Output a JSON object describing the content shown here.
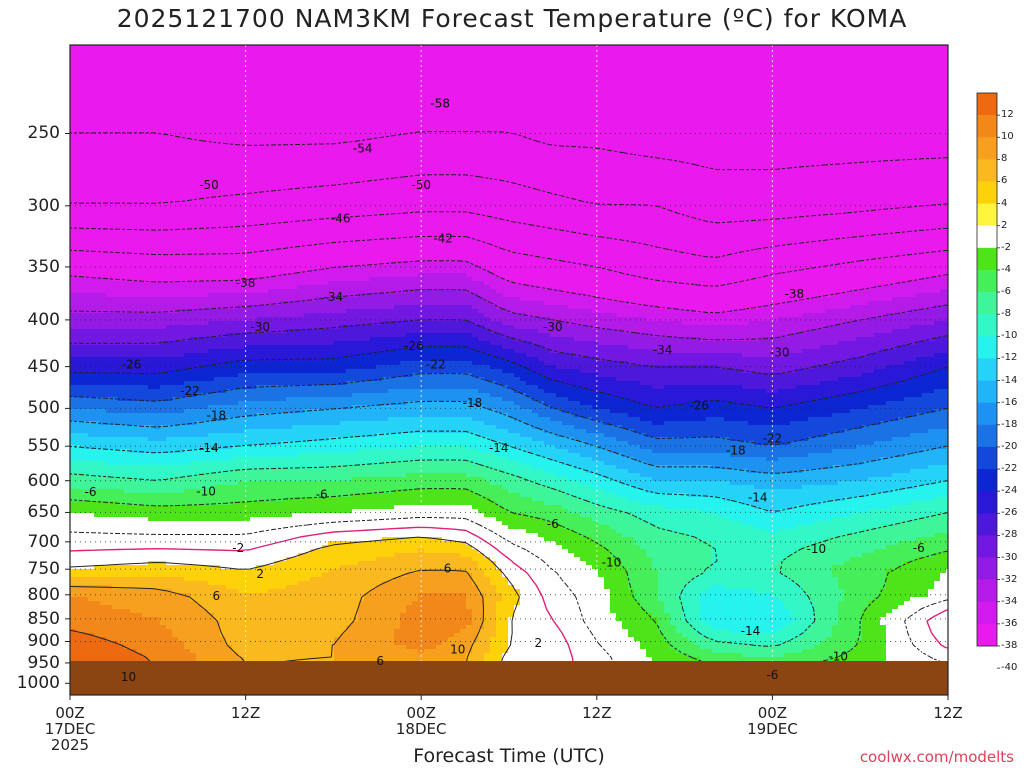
{
  "title": "2025121700 NAM3KM Forecast Temperature (ºC) for KOMA",
  "x_axis_title": "Forecast Time (UTC)",
  "credit": "coolwx.com/modelts",
  "colors": {
    "ground": "#8b4513",
    "freezing_line": "#e0207a",
    "contour": "#222222"
  },
  "chart_data": {
    "type": "heatmap",
    "title": "2025121700 NAM3KM Forecast Temperature (ºC) for KOMA",
    "xlabel": "Forecast Time (UTC)",
    "ylabel": "",
    "x_ticks": [
      {
        "hour": 0,
        "lines": [
          "00Z",
          "17DEC",
          "2025"
        ]
      },
      {
        "hour": 12,
        "lines": [
          "12Z"
        ]
      },
      {
        "hour": 24,
        "lines": [
          "00Z",
          "18DEC"
        ]
      },
      {
        "hour": 36,
        "lines": [
          "12Z"
        ]
      },
      {
        "hour": 48,
        "lines": [
          "00Z",
          "19DEC"
        ]
      },
      {
        "hour": 60,
        "lines": [
          "12Z"
        ]
      }
    ],
    "xlim": [
      0,
      60
    ],
    "y_ticks": [
      250,
      300,
      350,
      400,
      450,
      500,
      550,
      600,
      650,
      700,
      750,
      800,
      850,
      900,
      950,
      1000
    ],
    "ylim": [
      1030,
      200
    ],
    "yscale": "log-pressure",
    "colorbar_labels": [
      "12",
      "10",
      "8",
      "6",
      "4",
      "2",
      "-2",
      "-4",
      "-6",
      "-8",
      "-10",
      "-12",
      "-14",
      "-16",
      "-18",
      "-20",
      "-22",
      "-24",
      "-26",
      "-28",
      "-30",
      "-32",
      "-34",
      "-36",
      "-38",
      "-40"
    ],
    "colorbar_colors": [
      "#ee6a10",
      "#f3881a",
      "#f7a020",
      "#fab91e",
      "#fdd20a",
      "#fef53c",
      "#ffffff",
      "#4ee41a",
      "#46ef5a",
      "#3ef59a",
      "#32f8c8",
      "#26f2ee",
      "#25d3f8",
      "#22b4f8",
      "#1e92f0",
      "#1a72e4",
      "#1448dc",
      "#0c26d4",
      "#2a18d8",
      "#4d17dc",
      "#7218e2",
      "#941ae6",
      "#b41ae8",
      "#d01aee",
      "#ea1aef"
    ],
    "profiles_hours": [
      0,
      6,
      12,
      18,
      24,
      27,
      30,
      33,
      36,
      40,
      44,
      48,
      54,
      60
    ],
    "profile_levels": [
      200,
      250,
      300,
      350,
      400,
      450,
      500,
      550,
      600,
      650,
      700,
      750,
      800,
      850,
      900,
      950,
      975
    ],
    "temperature_c": [
      [
        -58,
        -54,
        -50,
        -39,
        -33,
        -27,
        -20,
        -14,
        -9,
        -4,
        -1,
        2,
        8,
        9,
        11,
        12,
        12
      ],
      [
        -58,
        -54,
        -50,
        -40,
        -33,
        -27,
        -21,
        -15,
        -10,
        -5,
        -1,
        3,
        7,
        8,
        9,
        10,
        10
      ],
      [
        -58,
        -55,
        -49,
        -40,
        -32,
        -25,
        -19,
        -14,
        -8,
        -5,
        -1,
        2,
        4,
        5,
        5,
        6,
        6
      ],
      [
        -58,
        -55,
        -48,
        -38,
        -31,
        -25,
        -18,
        -13,
        -8,
        -4,
        2,
        4,
        5,
        5,
        6,
        6,
        7
      ],
      [
        -58,
        -54,
        -47,
        -37,
        -30,
        -23,
        -17,
        -12,
        -7,
        -3,
        3,
        6,
        8,
        9,
        9,
        7,
        6
      ],
      [
        -58,
        -54,
        -47,
        -37,
        -30,
        -23,
        -17,
        -12,
        -7,
        -3,
        2,
        6,
        8,
        9,
        7,
        6,
        6
      ],
      [
        -58,
        -54,
        -48,
        -40,
        -33,
        -25,
        -19,
        -14,
        -9,
        -6,
        -2,
        1,
        3,
        2,
        2,
        1,
        1
      ],
      [
        -58,
        -55,
        -49,
        -41,
        -34,
        -28,
        -22,
        -16,
        -11,
        -7,
        -4,
        -2,
        -1,
        0,
        1,
        1,
        1
      ],
      [
        -58,
        -55,
        -50,
        -42,
        -35,
        -29,
        -24,
        -18,
        -13,
        -9,
        -6,
        -4,
        -3,
        -3,
        -2,
        -1,
        -1
      ],
      [
        -58,
        -56,
        -50,
        -44,
        -36,
        -30,
        -26,
        -21,
        -16,
        -11,
        -9,
        -8,
        -8,
        -6,
        -5,
        -4,
        -4
      ],
      [
        -58,
        -56,
        -52,
        -45,
        -37,
        -30,
        -25,
        -21,
        -16,
        -12,
        -10,
        -10,
        -13,
        -14,
        -10,
        -6,
        -5
      ],
      [
        -58,
        -56,
        -52,
        -43,
        -36,
        -31,
        -26,
        -22,
        -17,
        -14,
        -11,
        -10,
        -12,
        -14,
        -11,
        -7,
        -5
      ],
      [
        -58,
        -56,
        -51,
        -41,
        -34,
        -29,
        -24,
        -20,
        -16,
        -12,
        -9,
        -7,
        -7,
        -6,
        -6,
        -5,
        -4
      ],
      [
        -58,
        -56,
        -50,
        -39,
        -32,
        -26,
        -22,
        -18,
        -14,
        -10,
        -7,
        -4,
        -3,
        2,
        1,
        -2,
        -3
      ]
    ],
    "contour_labels": [
      {
        "text": "-58",
        "hour": 25.3,
        "p": 232
      },
      {
        "text": "-54",
        "hour": 20,
        "p": 260
      },
      {
        "text": "-50",
        "hour": 9.5,
        "p": 285
      },
      {
        "text": "-50",
        "hour": 24,
        "p": 285
      },
      {
        "text": "-46",
        "hour": 18.5,
        "p": 310
      },
      {
        "text": "-42",
        "hour": 25.5,
        "p": 326
      },
      {
        "text": "-38",
        "hour": 12,
        "p": 365
      },
      {
        "text": "-38",
        "hour": 49.5,
        "p": 375
      },
      {
        "text": "-34",
        "hour": 18,
        "p": 378
      },
      {
        "text": "-34",
        "hour": 40.5,
        "p": 432
      },
      {
        "text": "-30",
        "hour": 13,
        "p": 408
      },
      {
        "text": "-30",
        "hour": 33,
        "p": 408
      },
      {
        "text": "-30",
        "hour": 48.5,
        "p": 435
      },
      {
        "text": "-26",
        "hour": 4.2,
        "p": 448
      },
      {
        "text": "-26",
        "hour": 23.5,
        "p": 428
      },
      {
        "text": "-26",
        "hour": 43,
        "p": 497
      },
      {
        "text": "-22",
        "hour": 8.2,
        "p": 479
      },
      {
        "text": "-22",
        "hour": 25,
        "p": 448
      },
      {
        "text": "-22",
        "hour": 48,
        "p": 540
      },
      {
        "text": "-18",
        "hour": 10,
        "p": 510
      },
      {
        "text": "-18",
        "hour": 27.5,
        "p": 494
      },
      {
        "text": "-18",
        "hour": 45.5,
        "p": 557
      },
      {
        "text": "-14",
        "hour": 9.5,
        "p": 553
      },
      {
        "text": "-14",
        "hour": 29.3,
        "p": 553
      },
      {
        "text": "-14",
        "hour": 47,
        "p": 627
      },
      {
        "text": "-14",
        "hour": 46.5,
        "p": 878
      },
      {
        "text": "-10",
        "hour": 9.3,
        "p": 617
      },
      {
        "text": "-10",
        "hour": 37,
        "p": 738
      },
      {
        "text": "-10",
        "hour": 51,
        "p": 714
      },
      {
        "text": "-10",
        "hour": 52.5,
        "p": 936
      },
      {
        "text": "-6",
        "hour": 1.4,
        "p": 618
      },
      {
        "text": "-6",
        "hour": 17.2,
        "p": 622
      },
      {
        "text": "-6",
        "hour": 33,
        "p": 670
      },
      {
        "text": "-6",
        "hour": 58,
        "p": 712
      },
      {
        "text": "-6",
        "hour": 48,
        "p": 980
      },
      {
        "text": "-2",
        "hour": 11.5,
        "p": 712
      },
      {
        "text": "2",
        "hour": 13,
        "p": 760
      },
      {
        "text": "2",
        "hour": 32,
        "p": 905
      },
      {
        "text": "6",
        "hour": 10,
        "p": 803
      },
      {
        "text": "6",
        "hour": 25.8,
        "p": 750
      },
      {
        "text": "6",
        "hour": 21.2,
        "p": 947
      },
      {
        "text": "10",
        "hour": 4,
        "p": 986
      },
      {
        "text": "10",
        "hour": 26.5,
        "p": 920
      }
    ]
  }
}
